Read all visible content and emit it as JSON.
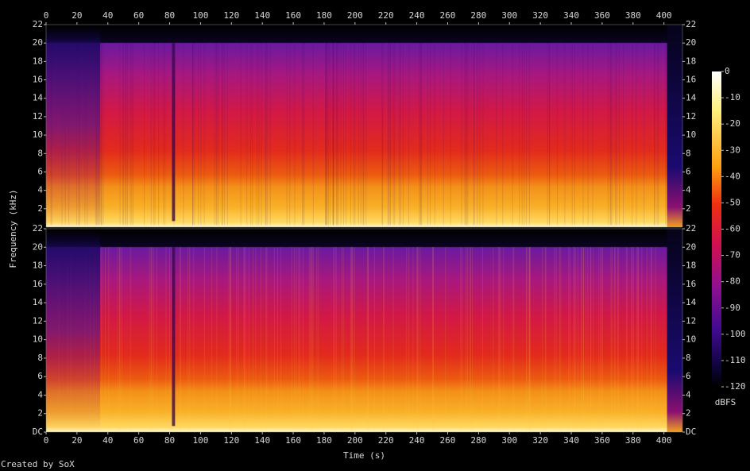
{
  "chart_data": {
    "type": "spectrogram",
    "xlabel": "Time (s)",
    "ylabel": "Frequency (kHz)",
    "xlim": [
      0,
      412
    ],
    "xticks": [
      0,
      20,
      40,
      60,
      80,
      100,
      120,
      140,
      160,
      180,
      200,
      220,
      240,
      260,
      280,
      300,
      320,
      340,
      360,
      380,
      400
    ],
    "channels": [
      {
        "ylim": [
          0,
          22
        ],
        "yticks": [
          2,
          4,
          6,
          8,
          10,
          12,
          14,
          16,
          18,
          20,
          22
        ]
      },
      {
        "ylim": [
          0,
          22
        ],
        "yticks": [
          {
            "value": 0,
            "label": "DC"
          },
          2,
          4,
          6,
          8,
          10,
          12,
          14,
          16,
          18,
          20,
          22
        ]
      }
    ],
    "colorbar": {
      "label": "dBFS",
      "lim": [
        -120,
        0
      ],
      "ticks": [
        0,
        -10,
        -20,
        -30,
        -40,
        -50,
        -60,
        -70,
        -80,
        -90,
        -100,
        -110,
        -120
      ]
    },
    "footer": "Created by SoX"
  }
}
